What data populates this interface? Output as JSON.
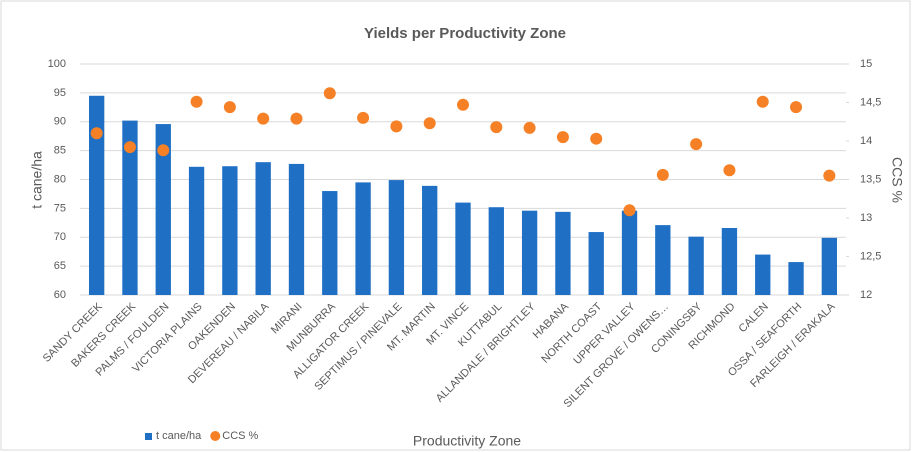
{
  "chart_data": {
    "type": "bar",
    "title": "Yields per Productivity Zone",
    "x_label": "Productivity Zone",
    "y_label": "t cane/ha",
    "y2_label": "CCS %",
    "categories": [
      "SANDY CREEK",
      "BAKERS CREEK",
      "PALMS / FOULDEN",
      "VICTORIA PLAINS",
      "OAKENDEN",
      "DEVEREAU / NABILA",
      "MIRANI",
      "MUNBURRA",
      "ALLIGATOR CREEK",
      "SEPTIMUS / PINEVALE",
      "MT. MARTIN",
      "MT. VINCE",
      "KUTTABUL",
      "ALLANDALE / BRIGHTLEY",
      "HABANA",
      "NORTH COAST",
      "UPPER VALLEY",
      "SILENT GROVE / OWENS…",
      "CONINGSBY",
      "RICHMOND",
      "CALEN",
      "OSSA / SEAFORTH",
      "FARLEIGH / ERAKALA"
    ],
    "series": [
      {
        "name": "t cane/ha",
        "color": "#1f6fc5",
        "values": [
          94.5,
          90.2,
          89.6,
          82.2,
          82.3,
          83.0,
          82.7,
          78.0,
          79.5,
          79.9,
          78.9,
          76.0,
          75.2,
          74.6,
          74.4,
          70.9,
          74.6,
          72.1,
          70.1,
          71.6,
          67.0,
          65.7,
          69.9
        ]
      },
      {
        "name": "CCS %",
        "color": "#f58025",
        "type": "scatter",
        "axis": "y2",
        "values": [
          14.1,
          13.92,
          13.88,
          14.51,
          14.44,
          14.29,
          14.29,
          14.62,
          14.3,
          14.19,
          14.23,
          14.47,
          14.18,
          14.17,
          14.05,
          14.03,
          13.1,
          13.56,
          13.96,
          13.62,
          14.51,
          14.44,
          13.55
        ]
      }
    ],
    "ylim": [
      60,
      100
    ],
    "yticks": [
      60,
      65,
      70,
      75,
      80,
      85,
      90,
      95,
      100
    ],
    "y2lim": [
      12,
      15
    ],
    "y2ticks": [
      12,
      {
        "value": 12.5,
        "label": "12,5"
      },
      13,
      {
        "value": 13.5,
        "label": "13,5"
      },
      14,
      {
        "value": 14.5,
        "label": "14,5"
      },
      15
    ],
    "grid": true,
    "legend": "bottom-left"
  }
}
